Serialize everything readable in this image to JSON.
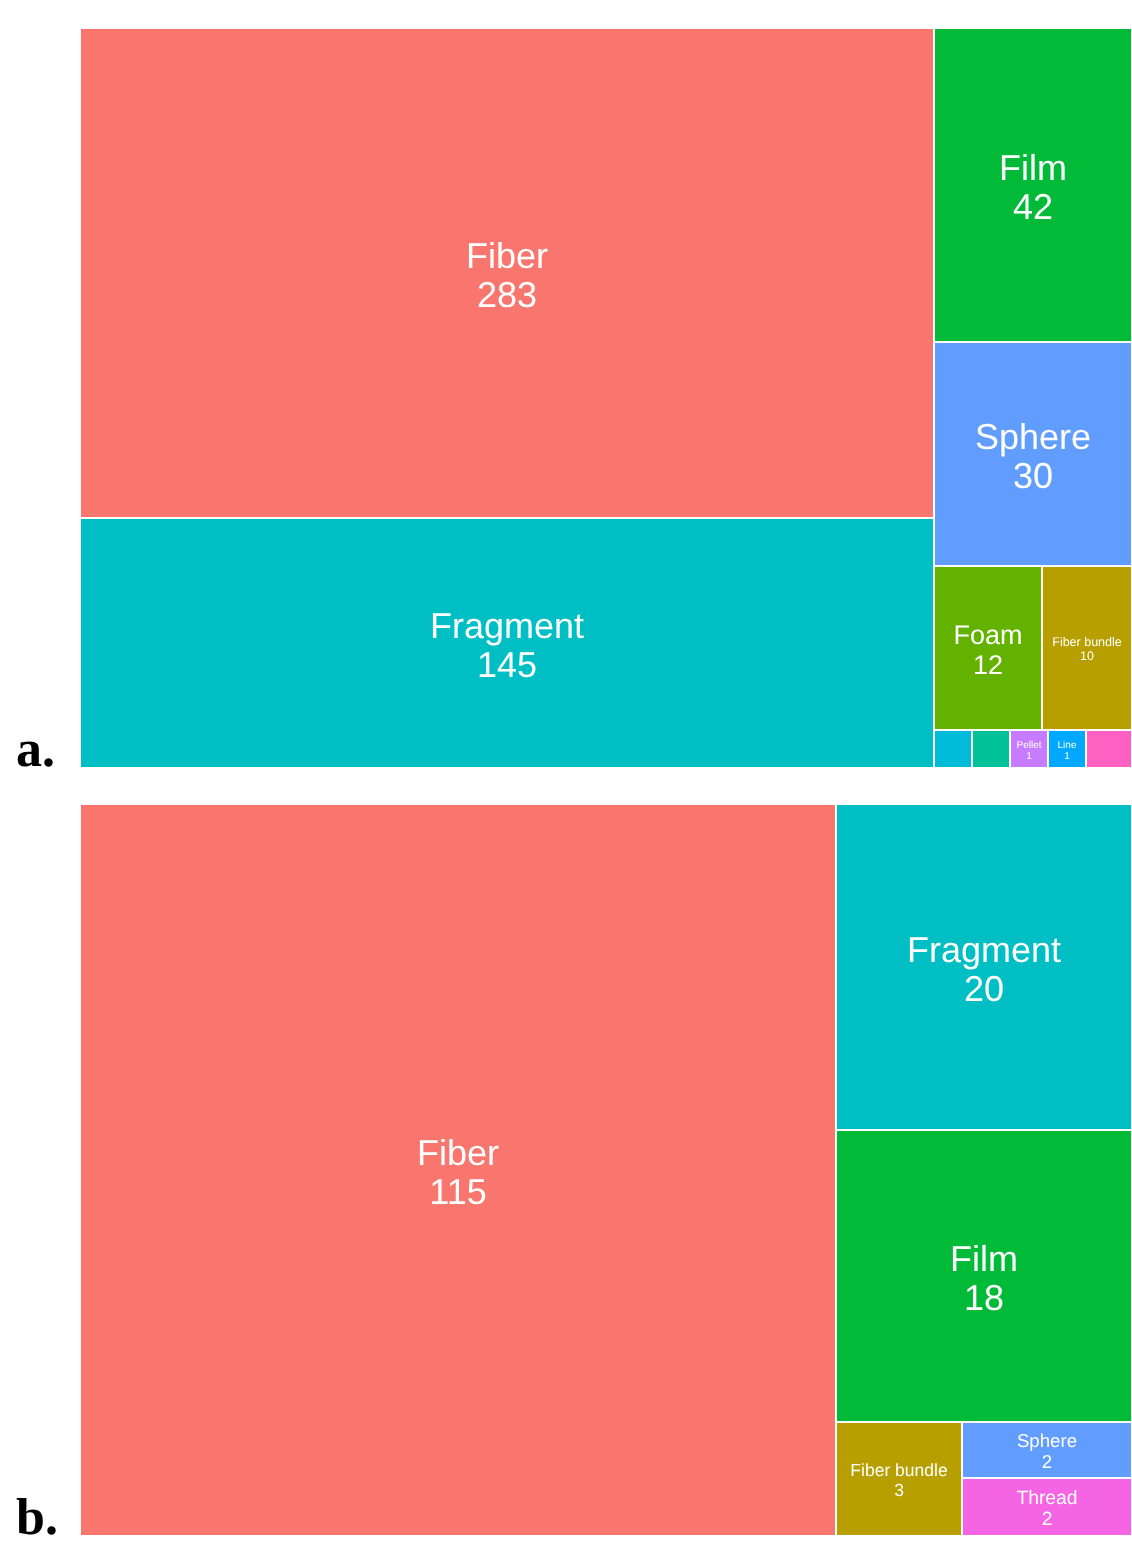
{
  "chart_data": [
    {
      "type": "other",
      "annotations": [
        "a."
      ],
      "categories": [
        "Fiber",
        "Fragment",
        "Film",
        "Sphere",
        "Foam",
        "Fiber bundle",
        null,
        null,
        "Pellet",
        "Line",
        null
      ],
      "values": [
        283,
        145,
        42,
        30,
        12,
        10,
        null,
        null,
        1,
        1,
        null
      ],
      "value_labels": [
        "283",
        "145",
        "42",
        "30",
        "12",
        "10",
        null,
        null,
        "1",
        "1",
        null
      ],
      "colors": [
        "#f8766d",
        "#00bfc4",
        "#00ba38",
        "#619cff",
        "#64b200",
        "#b79f00",
        "#00bcd8",
        "#00c19a",
        "#c77cff",
        "#00a9ff",
        "#ff61c3"
      ]
    },
    {
      "type": "other",
      "annotations": [
        "b."
      ],
      "categories": [
        "Fiber",
        "Fragment",
        "Film",
        "Fiber bundle",
        "Sphere",
        "Thread"
      ],
      "values": [
        115,
        20,
        18,
        3,
        2,
        2
      ],
      "value_labels": [
        "115",
        "20",
        "18",
        "3",
        "2",
        "2"
      ],
      "colors": [
        "#f8766d",
        "#00bfc4",
        "#00ba38",
        "#b79f00",
        "#619cff",
        "#f564e3"
      ]
    }
  ]
}
